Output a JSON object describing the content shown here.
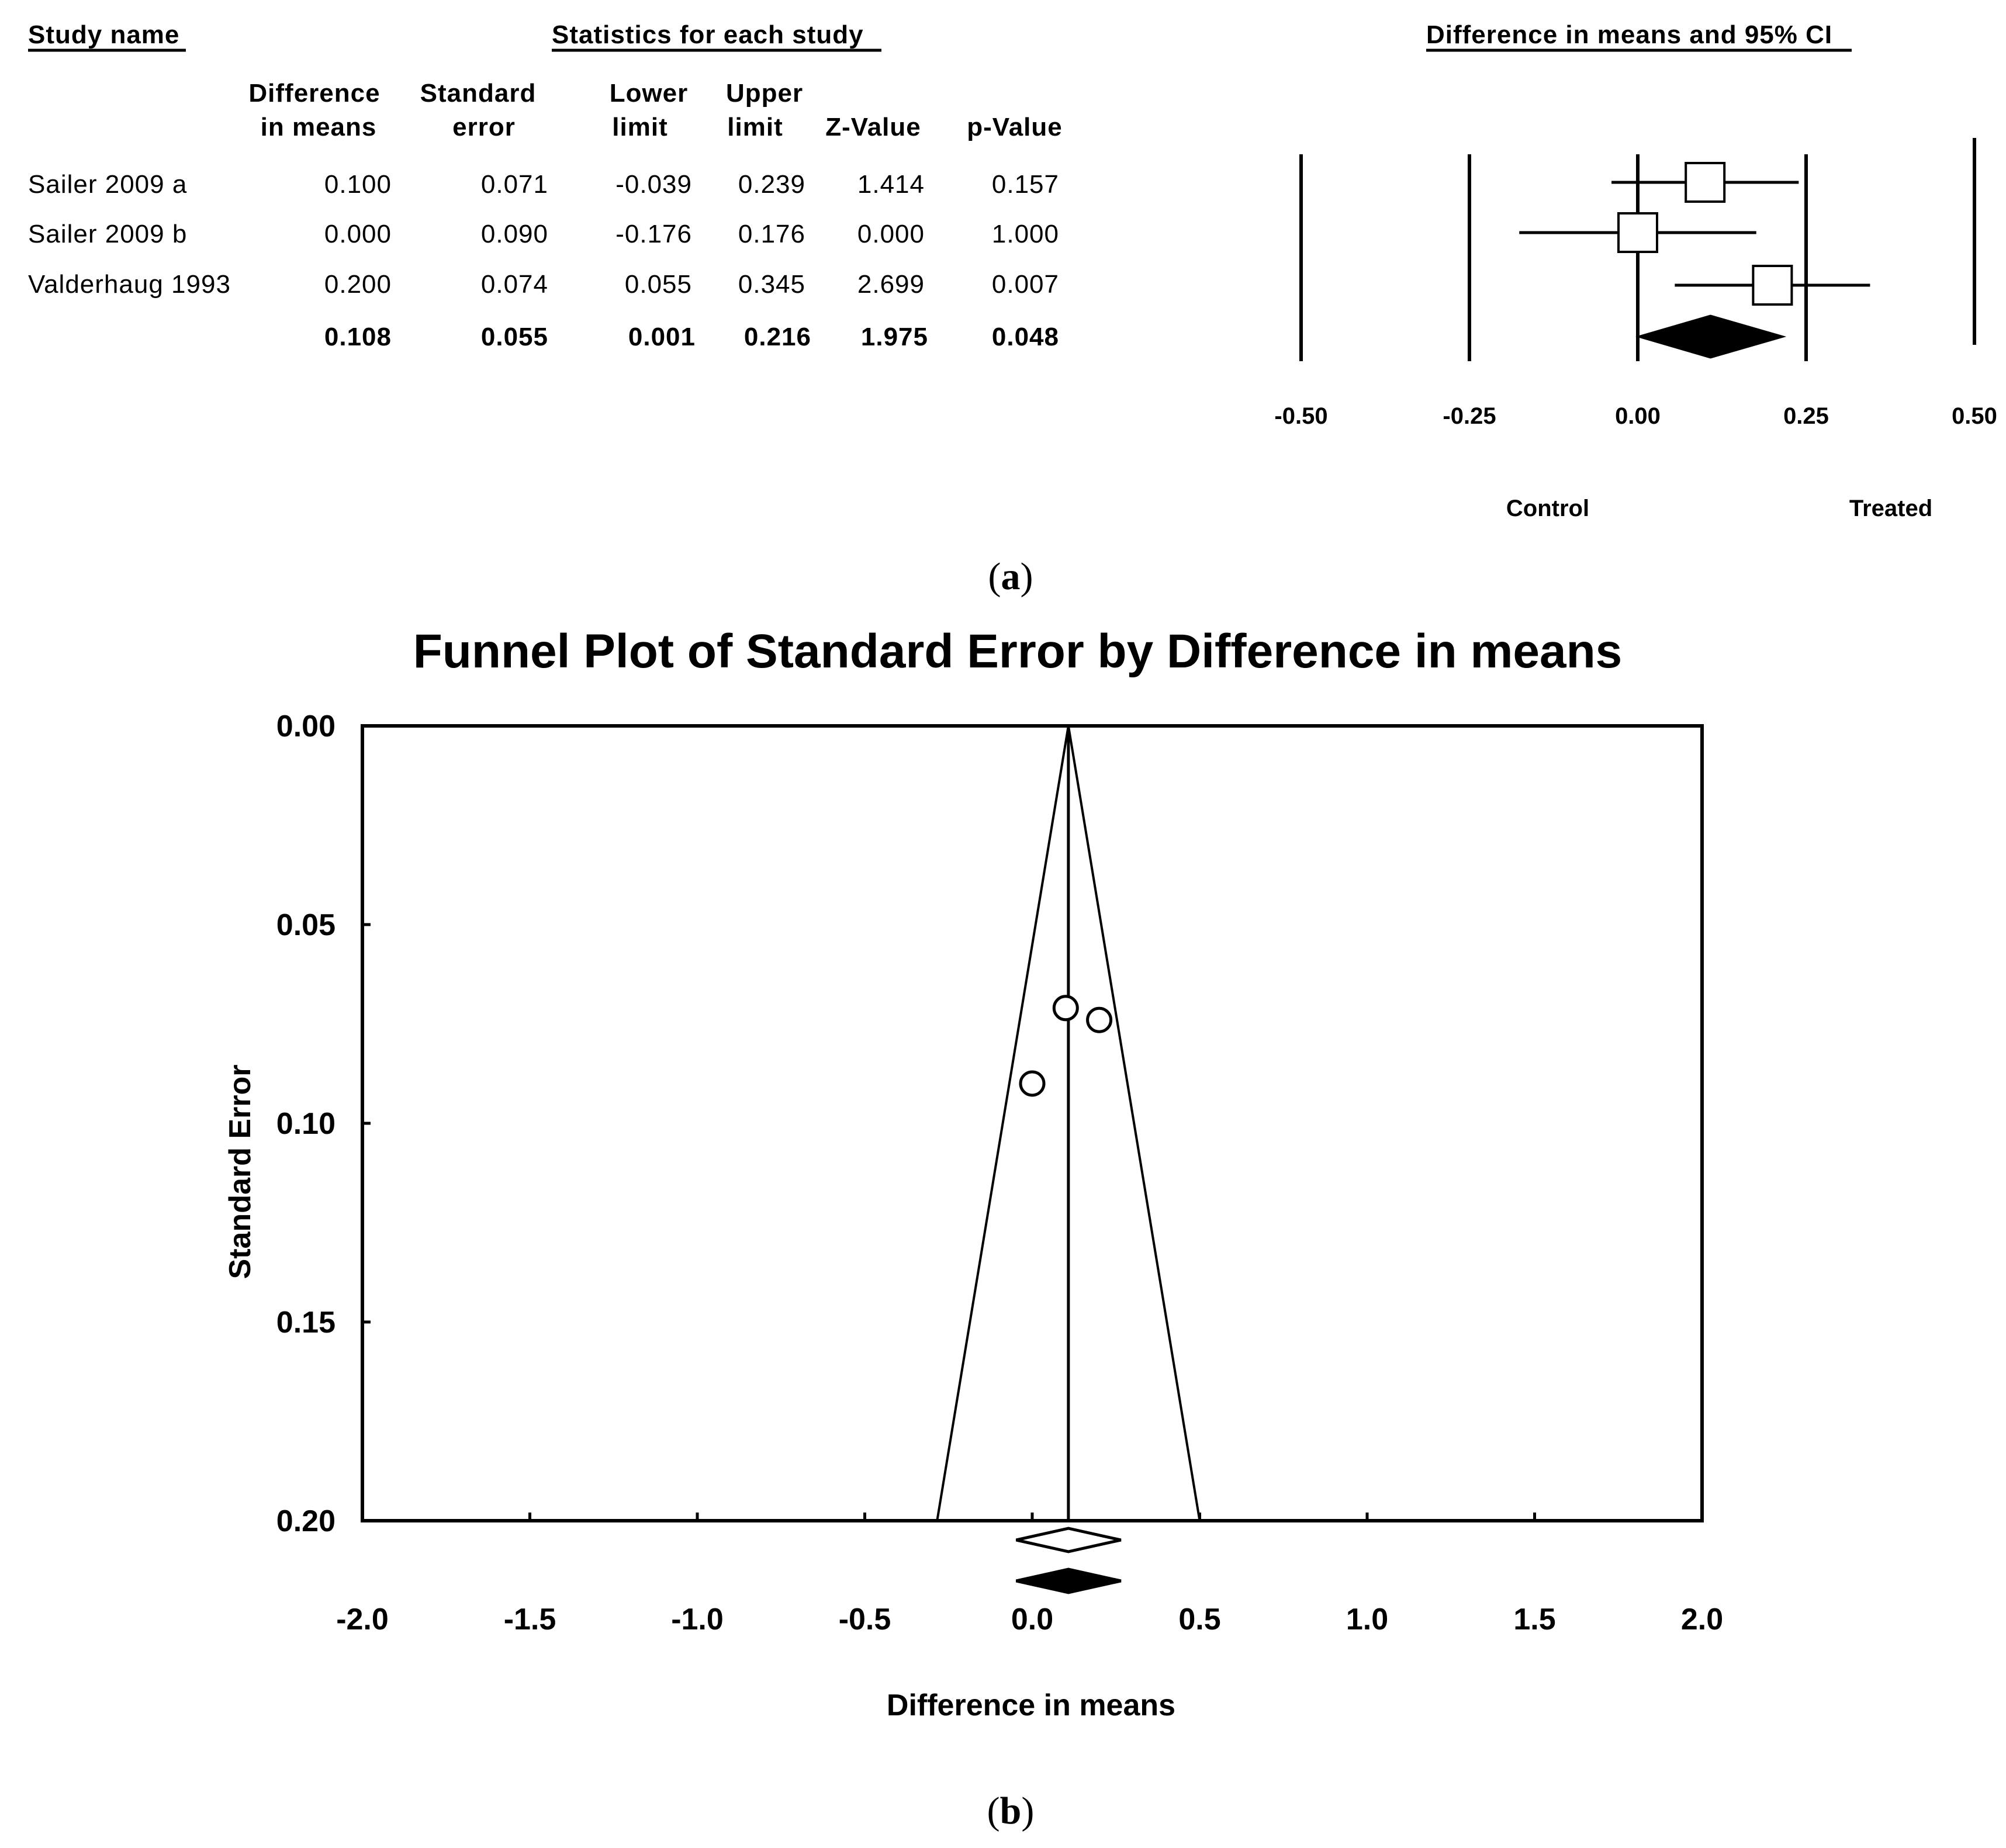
{
  "panel_a": {
    "label_open": "(",
    "label_letter": "a",
    "label_close": ")",
    "headers": {
      "study_name": "Study name",
      "statistics": "Statistics for each study",
      "ci": "Difference in means and 95% CI"
    },
    "columns": [
      [
        "Difference",
        "in means"
      ],
      [
        "Standard",
        "error"
      ],
      [
        "Lower",
        "limit"
      ],
      [
        "Upper",
        "limit"
      ],
      [
        "",
        "Z-Value"
      ],
      [
        "",
        "p-Value"
      ]
    ],
    "rows": [
      {
        "study": "Sailer 2009 a",
        "values": [
          "0.100",
          "0.071",
          "-0.039",
          "0.239",
          "1.414",
          "0.157"
        ]
      },
      {
        "study": "Sailer 2009 b",
        "values": [
          "0.000",
          "0.090",
          "-0.176",
          "0.176",
          "0.000",
          "1.000"
        ]
      },
      {
        "study": "Valderhaug 1993",
        "values": [
          "0.200",
          "0.074",
          "0.055",
          "0.345",
          "2.699",
          "0.007"
        ]
      }
    ],
    "summary": {
      "study": "",
      "values": [
        "0.108",
        "0.055",
        "0.001",
        "0.216",
        "1.975",
        "0.048"
      ]
    },
    "forest": {
      "ticks": [
        "-0.50",
        "-0.25",
        "0.00",
        "0.25",
        "0.50"
      ],
      "left_label": "Control",
      "right_label": "Treated"
    }
  },
  "panel_b": {
    "label_open": "(",
    "label_letter": "b",
    "label_close": ")"
  },
  "chart_data": [
    {
      "type": "forest",
      "xlim": [
        -0.5,
        0.5
      ],
      "x_ticks": [
        -0.5,
        -0.25,
        0.0,
        0.25,
        0.5
      ],
      "x_tick_labels": [
        "-0.50",
        "-0.25",
        "0.00",
        "0.25",
        "0.50"
      ],
      "studies": [
        {
          "name": "Sailer 2009 a",
          "effect": 0.1,
          "lower": -0.039,
          "upper": 0.239
        },
        {
          "name": "Sailer 2009 b",
          "effect": 0.0,
          "lower": -0.176,
          "upper": 0.176
        },
        {
          "name": "Valderhaug 1993",
          "effect": 0.2,
          "lower": 0.055,
          "upper": 0.345
        }
      ],
      "summary": {
        "effect": 0.108,
        "lower": 0.001,
        "upper": 0.216
      },
      "left_label": "Control",
      "right_label": "Treated",
      "title": "Difference in means and 95% CI"
    },
    {
      "type": "scatter",
      "title": "Funnel Plot of Standard Error by Difference in means",
      "xlabel": "Difference in means",
      "ylabel": "Standard Error",
      "xlim": [
        -2.0,
        2.0
      ],
      "ylim": [
        0.0,
        0.2
      ],
      "y_inverted": true,
      "x_ticks": [
        -2.0,
        -1.5,
        -1.0,
        -0.5,
        0.0,
        0.5,
        1.0,
        1.5,
        2.0
      ],
      "x_tick_labels": [
        "-2.0",
        "-1.5",
        "-1.0",
        "-0.5",
        "0.0",
        "0.5",
        "1.0",
        "1.5",
        "2.0"
      ],
      "y_ticks": [
        0.0,
        0.05,
        0.1,
        0.15,
        0.2
      ],
      "y_tick_labels": [
        "0.00",
        "0.05",
        "0.10",
        "0.15",
        "0.20"
      ],
      "points": [
        {
          "x": 0.1,
          "y": 0.071
        },
        {
          "x": 0.0,
          "y": 0.09
        },
        {
          "x": 0.2,
          "y": 0.074
        }
      ],
      "center": 0.108,
      "funnel_z": 1.96,
      "summary_diamonds": [
        {
          "fill": "open",
          "effect": 0.108,
          "lower": 0.001,
          "upper": 0.216
        },
        {
          "fill": "filled",
          "effect": 0.108,
          "lower": 0.001,
          "upper": 0.216
        }
      ]
    }
  ]
}
